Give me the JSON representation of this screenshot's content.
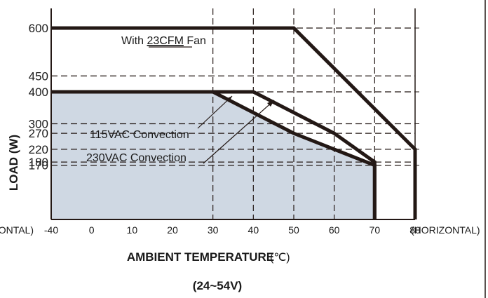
{
  "chart_data": {
    "type": "line",
    "xlabel_main": "AMBIENT TEMPERATURE",
    "xlabel_unit": "(℃)",
    "ylabel": "LOAD (W)",
    "subtitle": "(24~54V)",
    "x_ticks": [
      "-40",
      "0",
      "10",
      "20",
      "30",
      "40",
      "50",
      "60",
      "70",
      "80"
    ],
    "x_tick_values": [
      -10,
      0,
      10,
      20,
      30,
      40,
      50,
      60,
      70,
      80
    ],
    "y_ticks": [
      "600",
      "450",
      "400",
      "300",
      "270",
      "220",
      "180",
      "170"
    ],
    "y_tick_values": [
      600,
      450,
      400,
      300,
      270,
      220,
      180,
      170
    ],
    "left_orientation_label": "(HORIZONTAL)",
    "right_orientation_label": "(HORIZONTAL)",
    "xlim": [
      -10,
      80
    ],
    "ylim": [
      0,
      600
    ],
    "grid": "dashed",
    "series": [
      {
        "name": "With 23CFM Fan",
        "x": [
          -10,
          50,
          80,
          80
        ],
        "y": [
          600,
          600,
          220,
          0
        ]
      },
      {
        "name": "115VAC Convection",
        "x": [
          -10,
          40,
          60,
          70,
          70
        ],
        "y": [
          400,
          400,
          270,
          180,
          0
        ]
      },
      {
        "name": "230VAC Convection",
        "x": [
          -10,
          30,
          50,
          60,
          70,
          70
        ],
        "y": [
          400,
          400,
          270,
          220,
          170,
          0
        ]
      }
    ],
    "fan_label": {
      "prefix": "With ",
      "model": "23CFM",
      "suffix": " Fan"
    },
    "shaded_area_color": "#cfd8e3",
    "line_color": "#231815"
  }
}
